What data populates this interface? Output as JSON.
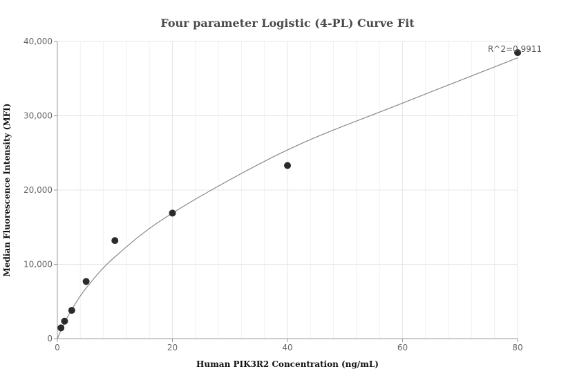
{
  "chart_data": {
    "type": "scatter",
    "title": "Four parameter Logistic (4-PL) Curve Fit",
    "xlabel": "Human PIK3R2 Concentration (ng/mL)",
    "ylabel": "Median Fluorescence Intensity (MFI)",
    "xlim": [
      0,
      80
    ],
    "ylim": [
      0,
      40000
    ],
    "x_ticks": [
      0,
      20,
      40,
      60,
      80
    ],
    "x_tick_labels": [
      "0",
      "20",
      "40",
      "60",
      "80"
    ],
    "y_ticks": [
      0,
      10000,
      20000,
      30000,
      40000
    ],
    "y_tick_labels": [
      "0",
      "10,000",
      "20,000",
      "30,000",
      "40,000"
    ],
    "grid": true,
    "points": [
      {
        "x": 0.625,
        "y": 1450
      },
      {
        "x": 1.25,
        "y": 2350
      },
      {
        "x": 2.5,
        "y": 3800
      },
      {
        "x": 5,
        "y": 7700
      },
      {
        "x": 10,
        "y": 13200
      },
      {
        "x": 20,
        "y": 16900
      },
      {
        "x": 40,
        "y": 23300
      },
      {
        "x": 80,
        "y": 38500
      }
    ],
    "fit_curve": {
      "x": [
        0,
        0.625,
        1.25,
        2.5,
        5,
        10,
        20,
        40,
        60,
        80
      ],
      "y": [
        0,
        1100,
        2150,
        3900,
        6800,
        11000,
        16900,
        25400,
        31700,
        37800
      ]
    },
    "annotation": "R^2=0.9911"
  }
}
